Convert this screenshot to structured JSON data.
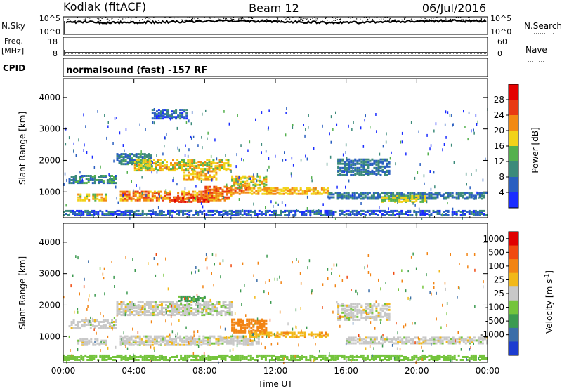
{
  "header": {
    "station": "Kodiak (fitACF)",
    "beam": "Beam 12",
    "date": "06/Jul/2016"
  },
  "left_labels": {
    "nsky": "N.Sky",
    "freq": "Freq.",
    "mhz": "[MHz]",
    "cpid": "CPID"
  },
  "right_labels": {
    "nsearch": "N.Search",
    "nave": "Nave"
  },
  "cpid_text": "normalsound (fast) -157 RF",
  "chart_data": [
    {
      "type": "line",
      "name": "noise-panel",
      "left_ticks": [
        "10^5",
        "10^0"
      ],
      "right_ticks": [
        "10^5",
        "10^0"
      ],
      "x": [
        0,
        24
      ],
      "note_level_sky": 0.72,
      "note_level_search": 0.78
    },
    {
      "type": "line",
      "name": "freq-nave-panel",
      "left_ticks": [
        "18",
        "8"
      ],
      "right_ticks": [
        "60",
        "0"
      ],
      "freq_mhz": 10.5,
      "nave": 18
    },
    {
      "type": "heatmap",
      "name": "power-panel",
      "ylabel": "Slant Range [km]",
      "yticks": [
        "1000",
        "2000",
        "3000",
        "4000"
      ],
      "ylim": [
        180,
        4600
      ],
      "xlim": [
        0,
        24
      ],
      "colorbar_label": "Power [dB]",
      "colorbar_ticks": [
        "4",
        "8",
        "12",
        "16",
        "20",
        "24",
        "28"
      ],
      "colorbar_colors": [
        "#1a2cff",
        "#2a5fc0",
        "#3c8a7a",
        "#54b04e",
        "#f2d21a",
        "#f28a14",
        "#e83a14",
        "#e40000"
      ],
      "bands": [
        {
          "t0": 0.3,
          "t1": 3.0,
          "r0": 1250,
          "r1": 1500,
          "level": 10
        },
        {
          "t0": 0.8,
          "t1": 2.4,
          "r0": 700,
          "r1": 900,
          "level": 18
        },
        {
          "t0": 3.0,
          "t1": 5.0,
          "r0": 1850,
          "r1": 2200,
          "level": 9
        },
        {
          "t0": 4.0,
          "t1": 9.5,
          "r0": 1650,
          "r1": 2000,
          "level": 18
        },
        {
          "t0": 6.8,
          "t1": 8.6,
          "r0": 1350,
          "r1": 1650,
          "level": 20
        },
        {
          "t0": 3.2,
          "t1": 9.5,
          "r0": 700,
          "r1": 1000,
          "level": 22
        },
        {
          "t0": 6.0,
          "t1": 8.2,
          "r0": 650,
          "r1": 800,
          "level": 26
        },
        {
          "t0": 8.0,
          "t1": 10.5,
          "r0": 900,
          "r1": 1150,
          "level": 24
        },
        {
          "t0": 9.5,
          "t1": 11.5,
          "r0": 1100,
          "r1": 1500,
          "level": 18
        },
        {
          "t0": 10.5,
          "t1": 15.0,
          "r0": 900,
          "r1": 1100,
          "level": 20
        },
        {
          "t0": 15.0,
          "t1": 24.0,
          "r0": 750,
          "r1": 950,
          "level": 8
        },
        {
          "t0": 18.0,
          "t1": 20.5,
          "r0": 650,
          "r1": 850,
          "level": 16
        },
        {
          "t0": 15.5,
          "t1": 18.5,
          "r0": 1500,
          "r1": 2000,
          "level": 8
        },
        {
          "t0": 5.0,
          "t1": 7.0,
          "r0": 3300,
          "r1": 3600,
          "level": 6
        },
        {
          "t0": 0.0,
          "t1": 24.0,
          "r0": 180,
          "r1": 400,
          "level": 6
        }
      ]
    },
    {
      "type": "heatmap",
      "name": "velocity-panel",
      "ylabel": "Slant Range [km]",
      "yticks": [
        "1000",
        "2000",
        "3000",
        "4000"
      ],
      "ylim": [
        180,
        4600
      ],
      "xlim": [
        0,
        24
      ],
      "xticks": [
        "00:00",
        "04:00",
        "08:00",
        "12:00",
        "16:00",
        "20:00",
        "00:00"
      ],
      "xlabel": "Time UT",
      "colorbar_label": "Velocity [m s",
      "colorbar_label_sup": "-1",
      "colorbar_label_end": "]",
      "colorbar_ticks": [
        "1000",
        "500",
        "100",
        "25",
        "-25",
        "-100",
        "-500",
        "-1000"
      ],
      "colorbar_colors": [
        "#1c3cd0",
        "#3c6ea8",
        "#3c9a50",
        "#74c43c",
        "#c8c8c8",
        "#f2b818",
        "#f28414",
        "#f04a10",
        "#e00000"
      ],
      "bands": [
        {
          "t0": 0.3,
          "t1": 3.0,
          "r0": 1250,
          "r1": 1500,
          "v": 0
        },
        {
          "t0": 3.0,
          "t1": 9.5,
          "r0": 1650,
          "r1": 2100,
          "v": 0
        },
        {
          "t0": 0.8,
          "t1": 2.4,
          "r0": 700,
          "r1": 900,
          "v": 0
        },
        {
          "t0": 3.2,
          "t1": 11.0,
          "r0": 700,
          "r1": 1000,
          "v": 0
        },
        {
          "t0": 9.5,
          "t1": 11.5,
          "r0": 1100,
          "r1": 1550,
          "v": -300
        },
        {
          "t0": 10.5,
          "t1": 15.0,
          "r0": 950,
          "r1": 1100,
          "v": -80
        },
        {
          "t0": 6.5,
          "t1": 8.0,
          "r0": 2100,
          "r1": 2250,
          "v": 120
        },
        {
          "t0": 15.5,
          "t1": 18.5,
          "r0": 1500,
          "r1": 2000,
          "v": 0
        },
        {
          "t0": 16.0,
          "t1": 24.0,
          "r0": 750,
          "r1": 950,
          "v": 0
        },
        {
          "t0": 0.0,
          "t1": 24.0,
          "r0": 180,
          "r1": 400,
          "v": 60
        }
      ]
    }
  ]
}
